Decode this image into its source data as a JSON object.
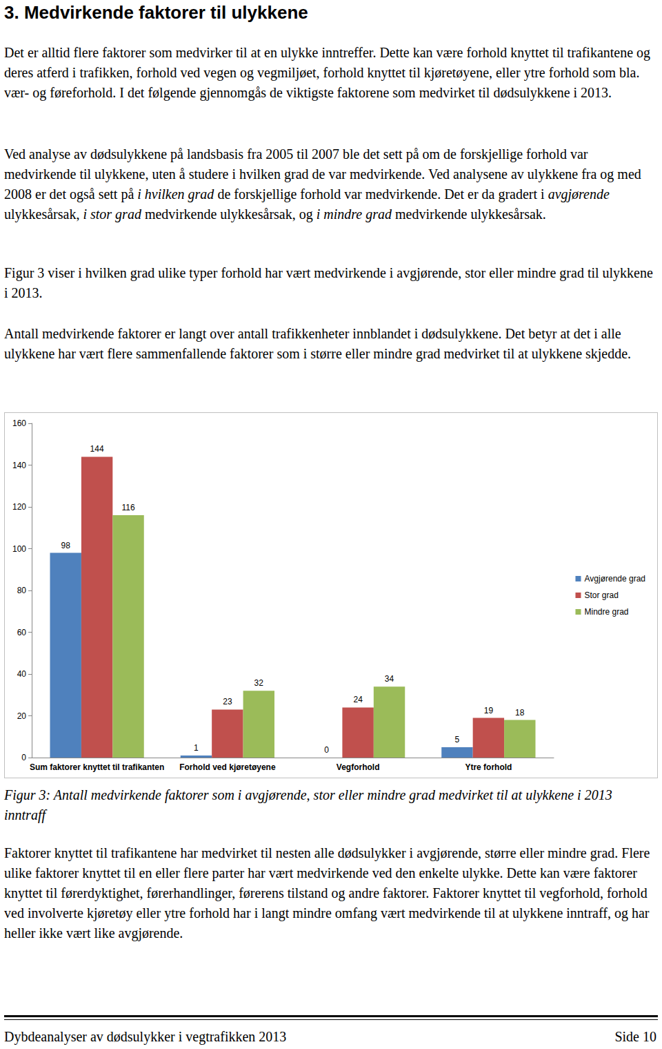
{
  "document": {
    "heading": "3. Medvirkende faktorer til ulykkene",
    "paragraphs_before": [
      [
        "Det er alltid flere faktorer som medvirker til at en ulykke inntreffer. Dette kan være forhold knyttet til trafikantene og deres atferd i trafikken, forhold ved vegen og vegmiljøet, forhold knyttet til kjøretøyene, eller ytre forhold som bla. vær- og føreforhold. I det følgende gjennomgås de viktigste faktorene som medvirket til dødsulykkene i 2013."
      ],
      [
        "Ved analyse av dødsulykkene på landsbasis fra 2005 til 2007 ble det sett på om de forskjellige forhold var medvirkende til ulykkene, uten å studere i hvilken grad de var medvirkende. Ved analysene av ulykkene fra og med 2008 er det også sett på ",
        {
          "text": "i hvilken grad",
          "italic": true
        },
        " de forskjellige forhold var medvirkende. Det er da gradert i ",
        {
          "text": "avgjørende",
          "italic": true
        },
        " ulykkesårsak, ",
        {
          "text": "i stor grad",
          "italic": true
        },
        " medvirkende ulykkesårsak, og ",
        {
          "text": "i mindre grad",
          "italic": true
        },
        " medvirkende ulykkesårsak."
      ],
      [
        "Figur 3 viser i hvilken grad ulike typer forhold har vært medvirkende i avgjørende, stor eller mindre grad til ulykkene i 2013."
      ],
      [
        "Antall medvirkende faktorer er langt over antall trafikkenheter innblandet i dødsulykkene. Det betyr at det i alle ulykkene har vært flere sammenfallende faktorer som i større eller mindre grad medvirket til at ulykkene skjedde."
      ]
    ],
    "caption": "Figur 3: Antall medvirkende faktorer som i avgjørende, stor eller mindre grad medvirket til at ulykkene i 2013 inntraff",
    "paragraphs_after": [
      [
        "Faktorer knyttet til trafikantene har medvirket til nesten alle dødsulykker i avgjørende, større eller mindre grad. Flere ulike faktorer knyttet til en eller flere parter har vært medvirkende ved den enkelte ulykke. Dette kan være faktorer knyttet til førerdyktighet, førerhandlinger, førerens tilstand og andre faktorer. Faktorer knyttet til vegforhold, forhold ved involverte kjøretøy eller ytre forhold har i langt mindre omfang vært medvirkende til at ulykkene inntraff, og har heller ikke vært like avgjørende."
      ]
    ],
    "footer": {
      "left": "Dybdeanalyser av dødsulykker i vegtrafikken 2013",
      "right": "Side 10"
    }
  },
  "chart_data": {
    "type": "bar",
    "categories": [
      "Sum faktorer knyttet til trafikanten",
      "Forhold ved kjøretøyene",
      "Vegforhold",
      "Ytre forhold"
    ],
    "series": [
      {
        "name": "Avgjørende grad",
        "color": "#4f81bd",
        "values": [
          98,
          1,
          0,
          5
        ]
      },
      {
        "name": "Stor grad",
        "color": "#c0504d",
        "values": [
          144,
          23,
          24,
          19
        ]
      },
      {
        "name": "Mindre grad",
        "color": "#9bbb59",
        "values": [
          116,
          32,
          34,
          18
        ]
      }
    ],
    "ylim": [
      0,
      160
    ],
    "yticks": [
      0,
      20,
      40,
      60,
      80,
      100,
      120,
      140,
      160
    ],
    "grid": false,
    "legend": "right",
    "data_labels": true
  }
}
